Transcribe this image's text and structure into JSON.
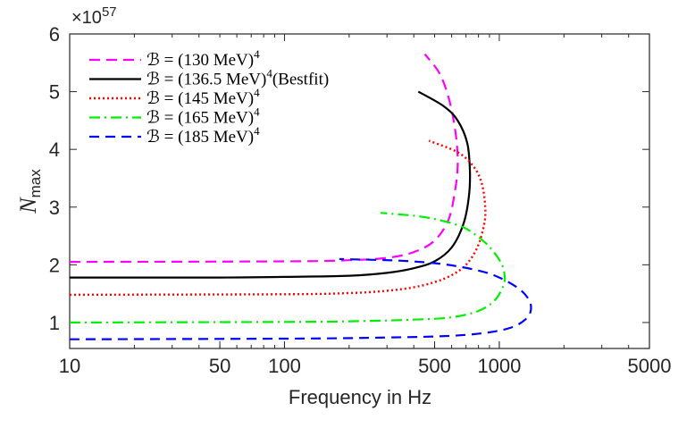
{
  "chart_data": {
    "type": "line",
    "title": "",
    "xlabel": "Frequency in Hz",
    "ylabel": "N",
    "ylabel_sub": "max",
    "xscale": "log",
    "xlim": [
      10,
      5000
    ],
    "ylim": [
      0.55,
      6
    ],
    "y_multiplier_base": "×10",
    "y_multiplier_exp": "57",
    "xticks": [
      10,
      50,
      100,
      500,
      1000,
      5000
    ],
    "xtick_labels": [
      "10",
      "50",
      "100",
      "500",
      "1000",
      "5000"
    ],
    "yticks": [
      1,
      2,
      3,
      4,
      5,
      6
    ],
    "ytick_labels": [
      "1",
      "2",
      "3",
      "4",
      "5",
      "6"
    ],
    "legend_position": "top-left",
    "series": [
      {
        "name": "B = (130 MeV)^4",
        "legend_prefix": "ℬ = (130 MeV)",
        "legend_sup": "4",
        "legend_suffix": "",
        "color": "#ff00ff",
        "dash": "12,7",
        "width": 2.2,
        "points": [
          [
            10,
            2.05
          ],
          [
            100,
            2.06
          ],
          [
            200,
            2.08
          ],
          [
            300,
            2.12
          ],
          [
            400,
            2.22
          ],
          [
            500,
            2.42
          ],
          [
            580,
            2.78
          ],
          [
            620,
            3.25
          ],
          [
            640,
            3.7
          ],
          [
            630,
            4.2
          ],
          [
            590,
            4.8
          ],
          [
            530,
            5.3
          ],
          [
            450,
            5.65
          ]
        ]
      },
      {
        "name": "B = (136.5 MeV)^4 (Bestfit)",
        "legend_prefix": "ℬ = (136.5 MeV)",
        "legend_sup": "4",
        "legend_suffix": "(Bestfit)",
        "color": "#000000",
        "dash": "",
        "width": 2.2,
        "points": [
          [
            10,
            1.78
          ],
          [
            50,
            1.78
          ],
          [
            100,
            1.79
          ],
          [
            200,
            1.81
          ],
          [
            300,
            1.86
          ],
          [
            400,
            1.94
          ],
          [
            500,
            2.06
          ],
          [
            600,
            2.3
          ],
          [
            680,
            2.7
          ],
          [
            720,
            3.15
          ],
          [
            730,
            3.6
          ],
          [
            710,
            4.1
          ],
          [
            640,
            4.5
          ],
          [
            550,
            4.75
          ],
          [
            420,
            5.0
          ]
        ]
      },
      {
        "name": "B = (145 MeV)^4",
        "legend_prefix": "ℬ = (145 MeV)",
        "legend_sup": "4",
        "legend_suffix": "",
        "color": "#ff0000",
        "dash": "2,3",
        "width": 2.4,
        "points": [
          [
            10,
            1.48
          ],
          [
            100,
            1.49
          ],
          [
            200,
            1.51
          ],
          [
            300,
            1.55
          ],
          [
            400,
            1.61
          ],
          [
            500,
            1.7
          ],
          [
            600,
            1.82
          ],
          [
            700,
            2.0
          ],
          [
            790,
            2.3
          ],
          [
            850,
            2.7
          ],
          [
            860,
            3.0
          ],
          [
            830,
            3.4
          ],
          [
            760,
            3.7
          ],
          [
            640,
            3.95
          ],
          [
            470,
            4.15
          ]
        ]
      },
      {
        "name": "B = (165 MeV)^4",
        "legend_prefix": "ℬ = (165 MeV)",
        "legend_sup": "4",
        "legend_suffix": "",
        "color": "#00ee00",
        "dash": "12,5,2,5",
        "width": 2.2,
        "points": [
          [
            10,
            1.0
          ],
          [
            100,
            1.01
          ],
          [
            200,
            1.02
          ],
          [
            400,
            1.05
          ],
          [
            600,
            1.09
          ],
          [
            800,
            1.2
          ],
          [
            950,
            1.38
          ],
          [
            1040,
            1.62
          ],
          [
            1060,
            1.78
          ],
          [
            1030,
            2.0
          ],
          [
            930,
            2.25
          ],
          [
            820,
            2.45
          ],
          [
            680,
            2.65
          ],
          [
            520,
            2.78
          ],
          [
            400,
            2.85
          ],
          [
            280,
            2.9
          ]
        ]
      },
      {
        "name": "B = (185 MeV)^4",
        "legend_prefix": "ℬ = (185 MeV)",
        "legend_sup": "4",
        "legend_suffix": "",
        "color": "#0000ff",
        "dash": "11,7",
        "width": 2.2,
        "points": [
          [
            10,
            0.71
          ],
          [
            100,
            0.72
          ],
          [
            300,
            0.74
          ],
          [
            600,
            0.77
          ],
          [
            900,
            0.83
          ],
          [
            1150,
            0.92
          ],
          [
            1320,
            1.05
          ],
          [
            1400,
            1.2
          ],
          [
            1380,
            1.38
          ],
          [
            1240,
            1.58
          ],
          [
            1000,
            1.78
          ],
          [
            800,
            1.9
          ],
          [
            550,
            2.01
          ],
          [
            350,
            2.07
          ],
          [
            180,
            2.1
          ]
        ]
      }
    ]
  }
}
